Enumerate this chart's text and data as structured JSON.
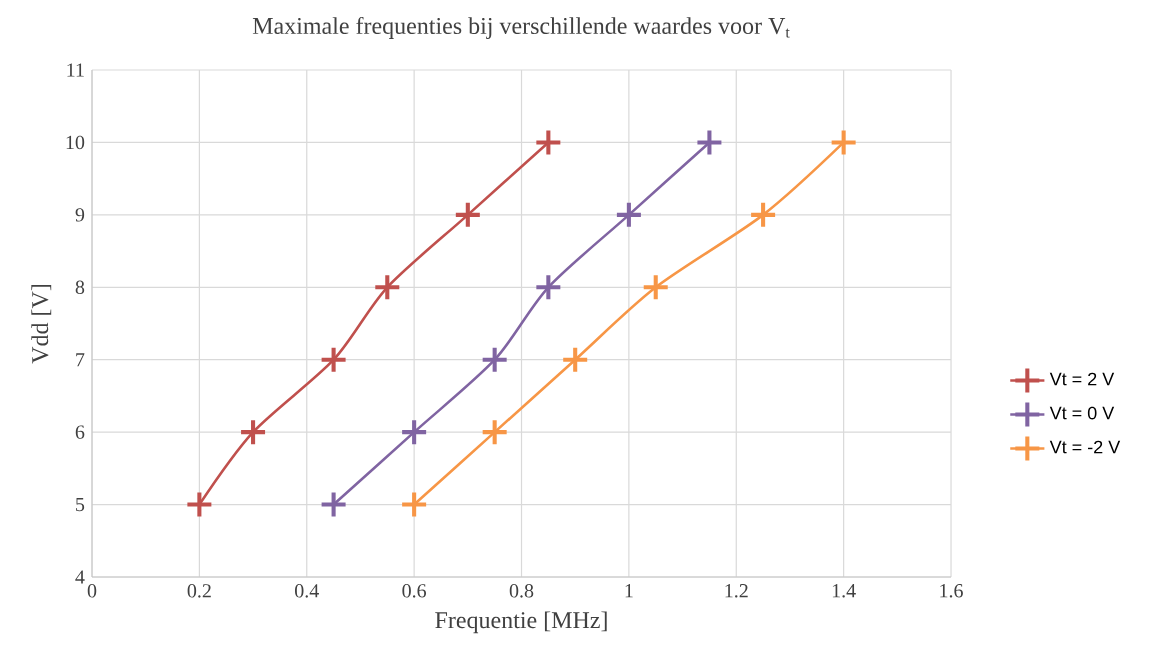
{
  "chart_data": {
    "type": "line",
    "title": "Maximale frequenties bij verschillende waardes voor V$_{t}$",
    "xlabel": "Frequentie [MHz]",
    "ylabel": "Vdd [V]",
    "xlim": [
      0,
      1.6
    ],
    "xticks": [
      0,
      0.2,
      0.4,
      0.6,
      0.8,
      1,
      1.2,
      1.4,
      1.6
    ],
    "ylim": [
      4,
      11
    ],
    "yticks": [
      4,
      5,
      6,
      7,
      8,
      9,
      10,
      11
    ],
    "grid": true,
    "legend": "right",
    "marker": "cross",
    "line_style": "solid",
    "series": [
      {
        "name": "Vt = 2 V",
        "color": "#c0504d",
        "x": [
          0.2,
          0.3,
          0.45,
          0.55,
          0.7,
          0.85
        ],
        "values": [
          5,
          6,
          7,
          8,
          9,
          10
        ]
      },
      {
        "name": "Vt = 0 V",
        "color": "#8064a2",
        "x": [
          0.45,
          0.6,
          0.75,
          0.85,
          1.0,
          1.15
        ],
        "values": [
          5,
          6,
          7,
          8,
          9,
          10
        ]
      },
      {
        "name": "Vt = -2 V",
        "color": "#f79646",
        "x": [
          0.6,
          0.75,
          0.9,
          1.05,
          1.25,
          1.4
        ],
        "values": [
          5,
          6,
          7,
          8,
          9,
          10
        ]
      }
    ]
  }
}
